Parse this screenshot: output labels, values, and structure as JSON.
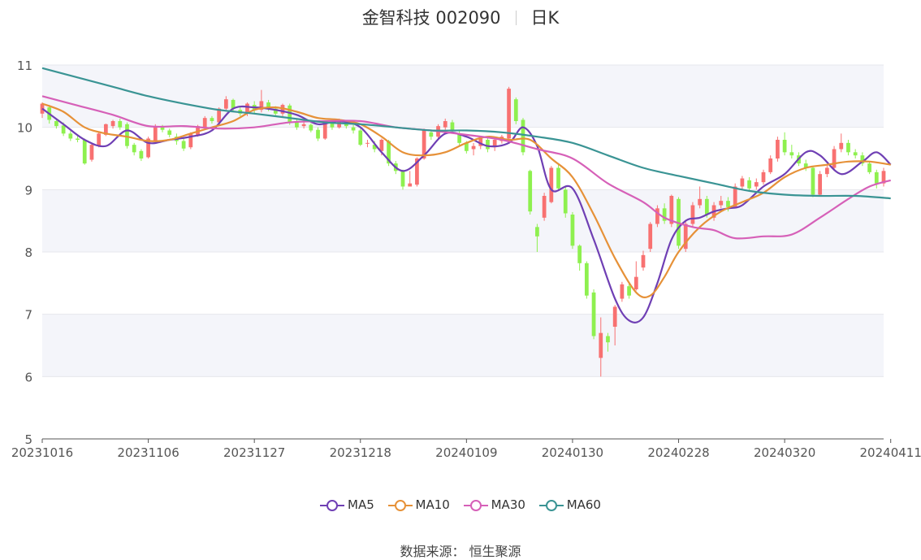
{
  "title": {
    "name": "金智科技 002090",
    "period": "日K"
  },
  "source": "数据来源： 恒生聚源",
  "colors": {
    "up": "#f87171",
    "down": "#8ef04f",
    "ma5": "#6f3fb4",
    "ma10": "#e69138",
    "ma30": "#d660b8",
    "ma60": "#3a9494",
    "band": "#f4f5fa",
    "grid": "#e6e7ec"
  },
  "chart_data": {
    "type": "candlestick",
    "ylim": [
      5,
      11
    ],
    "yticks": [
      "5",
      "6",
      "7",
      "8",
      "9",
      "10",
      "11"
    ],
    "xticks": [
      "20231016",
      "20231106",
      "20231127",
      "20231218",
      "20240109",
      "20240130",
      "20240228",
      "20240320",
      "20240411"
    ],
    "xtick_index": [
      0,
      15,
      30,
      45,
      60,
      75,
      90,
      105,
      120
    ],
    "legend": [
      "MA5",
      "MA10",
      "MA30",
      "MA60"
    ],
    "candles": [
      [
        10.22,
        10.38,
        10.4,
        10.15
      ],
      [
        10.32,
        10.12,
        10.36,
        10.06
      ],
      [
        10.1,
        10.02,
        10.14,
        9.98
      ],
      [
        10.03,
        9.9,
        10.08,
        9.86
      ],
      [
        9.9,
        9.82,
        9.94,
        9.78
      ],
      [
        9.82,
        9.8,
        9.86,
        9.76
      ],
      [
        9.8,
        9.42,
        9.82,
        9.4
      ],
      [
        9.48,
        9.72,
        9.75,
        9.45
      ],
      [
        9.7,
        9.9,
        9.92,
        9.68
      ],
      [
        9.88,
        10.05,
        10.06,
        9.86
      ],
      [
        10.02,
        10.1,
        10.12,
        9.98
      ],
      [
        10.1,
        10.0,
        10.14,
        9.96
      ],
      [
        10.05,
        9.7,
        10.08,
        9.66
      ],
      [
        9.72,
        9.6,
        9.75,
        9.55
      ],
      [
        9.62,
        9.5,
        9.65,
        9.46
      ],
      [
        9.52,
        9.82,
        9.85,
        9.5
      ],
      [
        9.78,
        10.02,
        10.05,
        9.75
      ],
      [
        10.0,
        9.96,
        10.04,
        9.92
      ],
      [
        9.95,
        9.88,
        9.98,
        9.84
      ],
      [
        9.85,
        9.78,
        9.9,
        9.72
      ],
      [
        9.78,
        9.66,
        9.82,
        9.62
      ],
      [
        9.68,
        9.9,
        9.92,
        9.65
      ],
      [
        9.88,
        10.02,
        10.04,
        9.85
      ],
      [
        10.0,
        10.15,
        10.18,
        9.96
      ],
      [
        10.15,
        10.1,
        10.18,
        10.06
      ],
      [
        10.08,
        10.3,
        10.32,
        10.05
      ],
      [
        10.3,
        10.45,
        10.5,
        10.25
      ],
      [
        10.44,
        10.3,
        10.46,
        10.26
      ],
      [
        10.28,
        10.22,
        10.34,
        10.18
      ],
      [
        10.22,
        10.38,
        10.4,
        10.18
      ],
      [
        10.36,
        10.28,
        10.42,
        10.22
      ],
      [
        10.28,
        10.42,
        10.6,
        10.24
      ],
      [
        10.4,
        10.3,
        10.44,
        10.26
      ],
      [
        10.3,
        10.22,
        10.34,
        10.18
      ],
      [
        10.22,
        10.36,
        10.38,
        10.18
      ],
      [
        10.35,
        10.08,
        10.38,
        10.04
      ],
      [
        10.1,
        10.0,
        10.14,
        9.96
      ],
      [
        10.02,
        10.05,
        10.08,
        9.98
      ],
      [
        10.04,
        9.95,
        10.06,
        9.92
      ],
      [
        9.96,
        9.82,
        10.0,
        9.78
      ],
      [
        9.82,
        10.08,
        10.1,
        9.8
      ],
      [
        10.06,
        10.0,
        10.1,
        9.96
      ],
      [
        10.0,
        10.1,
        10.14,
        9.98
      ],
      [
        10.08,
        10.02,
        10.12,
        9.98
      ],
      [
        10.0,
        9.95,
        10.04,
        9.9
      ],
      [
        9.95,
        9.72,
        9.98,
        9.7
      ],
      [
        9.75,
        9.75,
        9.8,
        9.68
      ],
      [
        9.72,
        9.65,
        9.78,
        9.6
      ],
      [
        9.62,
        9.8,
        9.82,
        9.55
      ],
      [
        9.78,
        9.42,
        9.8,
        9.38
      ],
      [
        9.42,
        9.3,
        9.46,
        9.25
      ],
      [
        9.3,
        9.05,
        9.32,
        9.0
      ],
      [
        9.05,
        9.1,
        9.3,
        9.05
      ],
      [
        9.08,
        9.5,
        9.52,
        9.05
      ],
      [
        9.5,
        9.95,
        9.98,
        9.48
      ],
      [
        9.92,
        9.85,
        9.96,
        9.8
      ],
      [
        9.85,
        10.02,
        10.05,
        9.82
      ],
      [
        10.0,
        10.1,
        10.14,
        9.96
      ],
      [
        10.08,
        9.95,
        10.12,
        9.9
      ],
      [
        9.9,
        9.75,
        9.94,
        9.7
      ],
      [
        9.75,
        9.62,
        9.78,
        9.58
      ],
      [
        9.65,
        9.7,
        9.75,
        9.55
      ],
      [
        9.7,
        9.82,
        9.85,
        9.65
      ],
      [
        9.8,
        9.65,
        9.84,
        9.6
      ],
      [
        9.68,
        9.8,
        9.82,
        9.62
      ],
      [
        9.78,
        9.85,
        9.88,
        9.74
      ],
      [
        9.82,
        10.62,
        10.65,
        9.78
      ],
      [
        10.45,
        10.1,
        10.48,
        10.05
      ],
      [
        10.12,
        9.6,
        10.15,
        9.55
      ],
      [
        9.3,
        8.65,
        9.32,
        8.6
      ],
      [
        8.4,
        8.25,
        8.45,
        8.0
      ],
      [
        8.55,
        8.9,
        8.95,
        8.5
      ],
      [
        8.8,
        9.35,
        9.38,
        8.78
      ],
      [
        9.35,
        9.02,
        9.4,
        8.98
      ],
      [
        9.0,
        8.62,
        9.05,
        8.55
      ],
      [
        8.6,
        8.1,
        8.64,
        8.05
      ],
      [
        8.1,
        7.82,
        8.12,
        7.7
      ],
      [
        7.82,
        7.3,
        7.85,
        7.25
      ],
      [
        7.35,
        6.65,
        7.4,
        6.6
      ],
      [
        6.3,
        6.7,
        6.95,
        6.0
      ],
      [
        6.65,
        6.55,
        6.7,
        6.4
      ],
      [
        6.8,
        7.12,
        7.15,
        6.5
      ],
      [
        7.25,
        7.48,
        7.52,
        7.2
      ],
      [
        7.45,
        7.3,
        7.5,
        7.25
      ],
      [
        7.4,
        7.6,
        7.85,
        7.38
      ],
      [
        7.75,
        7.95,
        8.02,
        7.7
      ],
      [
        8.05,
        8.45,
        8.48,
        8.0
      ],
      [
        8.45,
        8.7,
        8.75,
        8.4
      ],
      [
        8.7,
        8.5,
        8.78,
        8.45
      ],
      [
        8.45,
        8.9,
        8.92,
        8.4
      ],
      [
        8.85,
        8.1,
        8.88,
        8.05
      ],
      [
        8.05,
        8.45,
        8.5,
        8.0
      ],
      [
        8.45,
        8.75,
        8.8,
        8.4
      ],
      [
        8.75,
        8.85,
        9.05,
        8.7
      ],
      [
        8.85,
        8.6,
        8.9,
        8.55
      ],
      [
        8.55,
        8.75,
        8.8,
        8.5
      ],
      [
        8.75,
        8.82,
        8.9,
        8.7
      ],
      [
        8.82,
        8.72,
        8.88,
        8.65
      ],
      [
        8.72,
        9.05,
        9.1,
        8.7
      ],
      [
        9.05,
        9.18,
        9.22,
        9.0
      ],
      [
        9.15,
        9.02,
        9.2,
        8.98
      ],
      [
        9.05,
        9.12,
        9.18,
        9.0
      ],
      [
        9.12,
        9.28,
        9.32,
        9.08
      ],
      [
        9.28,
        9.5,
        9.55,
        9.25
      ],
      [
        9.5,
        9.8,
        9.85,
        9.45
      ],
      [
        9.8,
        9.6,
        9.92,
        9.55
      ],
      [
        9.6,
        9.55,
        9.72,
        9.5
      ],
      [
        9.55,
        9.42,
        9.6,
        9.38
      ],
      [
        9.42,
        9.35,
        9.48,
        9.3
      ],
      [
        9.35,
        8.92,
        9.38,
        8.88
      ],
      [
        8.92,
        9.25,
        9.3,
        8.9
      ],
      [
        9.25,
        9.35,
        9.4,
        9.2
      ],
      [
        9.35,
        9.65,
        9.7,
        9.3
      ],
      [
        9.65,
        9.75,
        9.9,
        9.6
      ],
      [
        9.75,
        9.6,
        9.8,
        9.55
      ],
      [
        9.6,
        9.55,
        9.65,
        9.5
      ],
      [
        9.55,
        9.42,
        9.6,
        9.38
      ],
      [
        9.42,
        9.28,
        9.45,
        9.25
      ],
      [
        9.28,
        9.1,
        9.32,
        9.02
      ],
      [
        9.1,
        9.3,
        9.35,
        9.05
      ]
    ],
    "ma": {
      "MA5": [
        [
          0,
          10.3
        ],
        [
          3,
          10.05
        ],
        [
          6,
          9.8
        ],
        [
          9,
          9.7
        ],
        [
          12,
          9.95
        ],
        [
          15,
          9.75
        ],
        [
          18,
          9.8
        ],
        [
          21,
          9.85
        ],
        [
          24,
          9.95
        ],
        [
          27,
          10.3
        ],
        [
          30,
          10.32
        ],
        [
          33,
          10.28
        ],
        [
          36,
          10.2
        ],
        [
          39,
          10.05
        ],
        [
          42,
          10.1
        ],
        [
          45,
          10.0
        ],
        [
          48,
          9.6
        ],
        [
          51,
          9.3
        ],
        [
          54,
          9.55
        ],
        [
          57,
          9.9
        ],
        [
          60,
          9.85
        ],
        [
          63,
          9.7
        ],
        [
          66,
          9.75
        ],
        [
          68,
          10.0
        ],
        [
          70,
          9.7
        ],
        [
          72,
          9.0
        ],
        [
          75,
          9.02
        ],
        [
          78,
          8.2
        ],
        [
          81,
          7.25
        ],
        [
          83,
          6.9
        ],
        [
          85,
          6.95
        ],
        [
          87,
          7.5
        ],
        [
          89,
          8.2
        ],
        [
          91,
          8.5
        ],
        [
          93,
          8.55
        ],
        [
          95,
          8.65
        ],
        [
          97,
          8.7
        ],
        [
          99,
          8.75
        ],
        [
          102,
          9.05
        ],
        [
          105,
          9.25
        ],
        [
          108,
          9.6
        ],
        [
          110,
          9.55
        ],
        [
          113,
          9.25
        ],
        [
          116,
          9.45
        ],
        [
          118,
          9.6
        ],
        [
          120,
          9.4
        ]
      ],
      "MA10": [
        [
          0,
          10.38
        ],
        [
          3,
          10.25
        ],
        [
          6,
          10.0
        ],
        [
          9,
          9.9
        ],
        [
          12,
          9.85
        ],
        [
          15,
          9.78
        ],
        [
          18,
          9.8
        ],
        [
          21,
          9.9
        ],
        [
          24,
          10.0
        ],
        [
          27,
          10.1
        ],
        [
          30,
          10.28
        ],
        [
          33,
          10.32
        ],
        [
          36,
          10.25
        ],
        [
          39,
          10.15
        ],
        [
          42,
          10.12
        ],
        [
          45,
          10.05
        ],
        [
          48,
          9.85
        ],
        [
          51,
          9.6
        ],
        [
          54,
          9.55
        ],
        [
          57,
          9.6
        ],
        [
          60,
          9.75
        ],
        [
          63,
          9.85
        ],
        [
          66,
          9.8
        ],
        [
          69,
          9.8
        ],
        [
          72,
          9.5
        ],
        [
          75,
          9.2
        ],
        [
          78,
          8.6
        ],
        [
          81,
          7.9
        ],
        [
          84,
          7.35
        ],
        [
          86,
          7.3
        ],
        [
          88,
          7.6
        ],
        [
          90,
          8.0
        ],
        [
          93,
          8.4
        ],
        [
          96,
          8.65
        ],
        [
          99,
          8.8
        ],
        [
          102,
          8.95
        ],
        [
          105,
          9.2
        ],
        [
          108,
          9.35
        ],
        [
          111,
          9.4
        ],
        [
          114,
          9.45
        ],
        [
          117,
          9.45
        ],
        [
          120,
          9.4
        ]
      ],
      "MA30": [
        [
          0,
          10.5
        ],
        [
          5,
          10.35
        ],
        [
          10,
          10.2
        ],
        [
          15,
          10.02
        ],
        [
          20,
          10.02
        ],
        [
          25,
          9.98
        ],
        [
          30,
          10.0
        ],
        [
          35,
          10.08
        ],
        [
          40,
          10.1
        ],
        [
          45,
          10.1
        ],
        [
          50,
          10.0
        ],
        [
          55,
          9.95
        ],
        [
          60,
          9.88
        ],
        [
          65,
          9.8
        ],
        [
          70,
          9.65
        ],
        [
          75,
          9.5
        ],
        [
          80,
          9.1
        ],
        [
          85,
          8.8
        ],
        [
          88,
          8.55
        ],
        [
          92,
          8.4
        ],
        [
          95,
          8.35
        ],
        [
          98,
          8.22
        ],
        [
          102,
          8.25
        ],
        [
          106,
          8.28
        ],
        [
          110,
          8.55
        ],
        [
          114,
          8.85
        ],
        [
          117,
          9.05
        ],
        [
          120,
          9.15
        ]
      ],
      "MA60": [
        [
          0,
          10.95
        ],
        [
          5,
          10.8
        ],
        [
          10,
          10.65
        ],
        [
          15,
          10.5
        ],
        [
          20,
          10.38
        ],
        [
          25,
          10.28
        ],
        [
          30,
          10.22
        ],
        [
          35,
          10.15
        ],
        [
          40,
          10.08
        ],
        [
          45,
          10.05
        ],
        [
          50,
          10.0
        ],
        [
          55,
          9.95
        ],
        [
          60,
          9.95
        ],
        [
          65,
          9.92
        ],
        [
          70,
          9.85
        ],
        [
          75,
          9.75
        ],
        [
          80,
          9.55
        ],
        [
          85,
          9.35
        ],
        [
          90,
          9.22
        ],
        [
          95,
          9.1
        ],
        [
          100,
          8.98
        ],
        [
          105,
          8.92
        ],
        [
          110,
          8.9
        ],
        [
          115,
          8.9
        ],
        [
          120,
          8.86
        ]
      ]
    }
  }
}
